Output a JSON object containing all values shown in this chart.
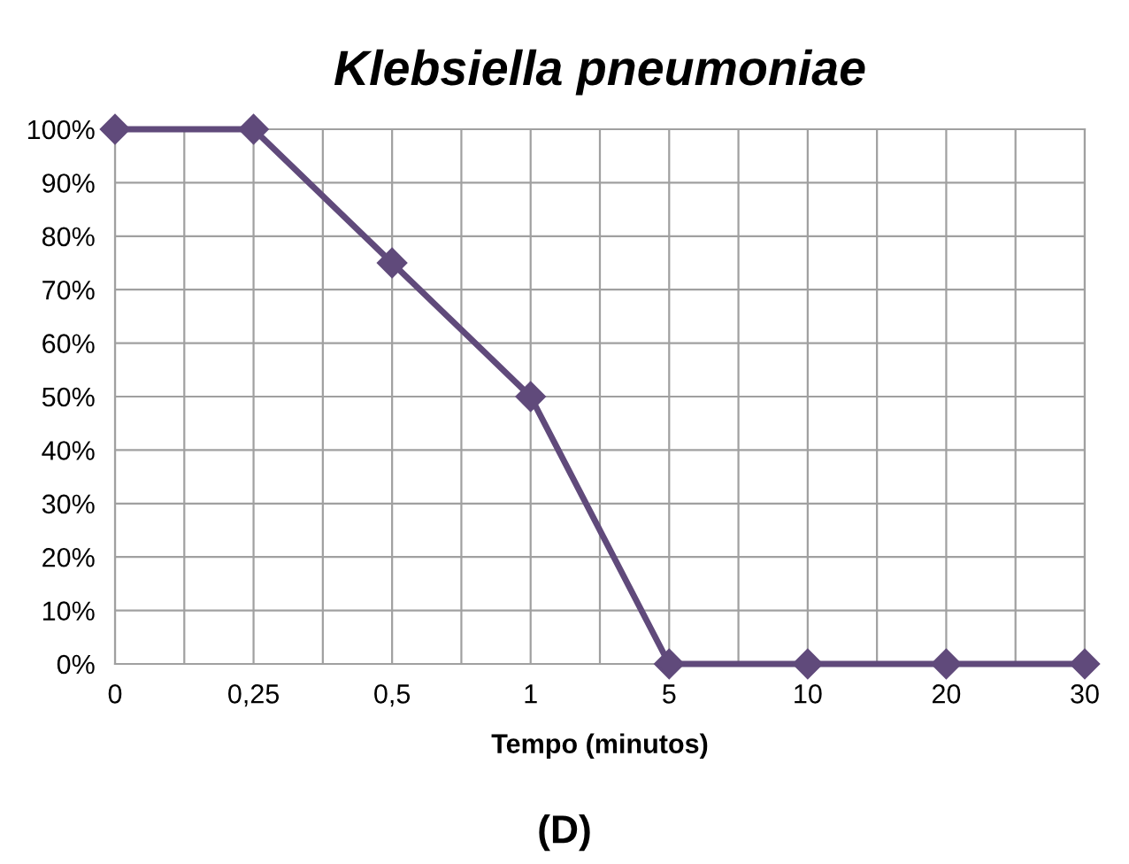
{
  "chart_data": {
    "type": "line",
    "title": "Klebsiella pneumoniae",
    "xlabel": "Tempo (minutos)",
    "annotations": [
      "(D)"
    ],
    "categories": [
      "0",
      "0,25",
      "0,5",
      "1",
      "5",
      "10",
      "20",
      "30"
    ],
    "series": [
      {
        "color": "#604a7b",
        "values": [
          100,
          100,
          75,
          50,
          0,
          0,
          0,
          0
        ]
      }
    ],
    "ylim": [
      0,
      100
    ],
    "yticks": [
      {
        "value": 0,
        "label": "0%"
      },
      {
        "value": 10,
        "label": "10%"
      },
      {
        "value": 20,
        "label": "20%"
      },
      {
        "value": 30,
        "label": "30%"
      },
      {
        "value": 40,
        "label": "40%"
      },
      {
        "value": 50,
        "label": "50%"
      },
      {
        "value": 60,
        "label": "60%"
      },
      {
        "value": 70,
        "label": "70%"
      },
      {
        "value": 80,
        "label": "80%"
      },
      {
        "value": 90,
        "label": "90%"
      },
      {
        "value": 100,
        "label": "100%"
      }
    ],
    "grid": true,
    "legend": false,
    "marker": "diamond",
    "line_style": "solid"
  }
}
